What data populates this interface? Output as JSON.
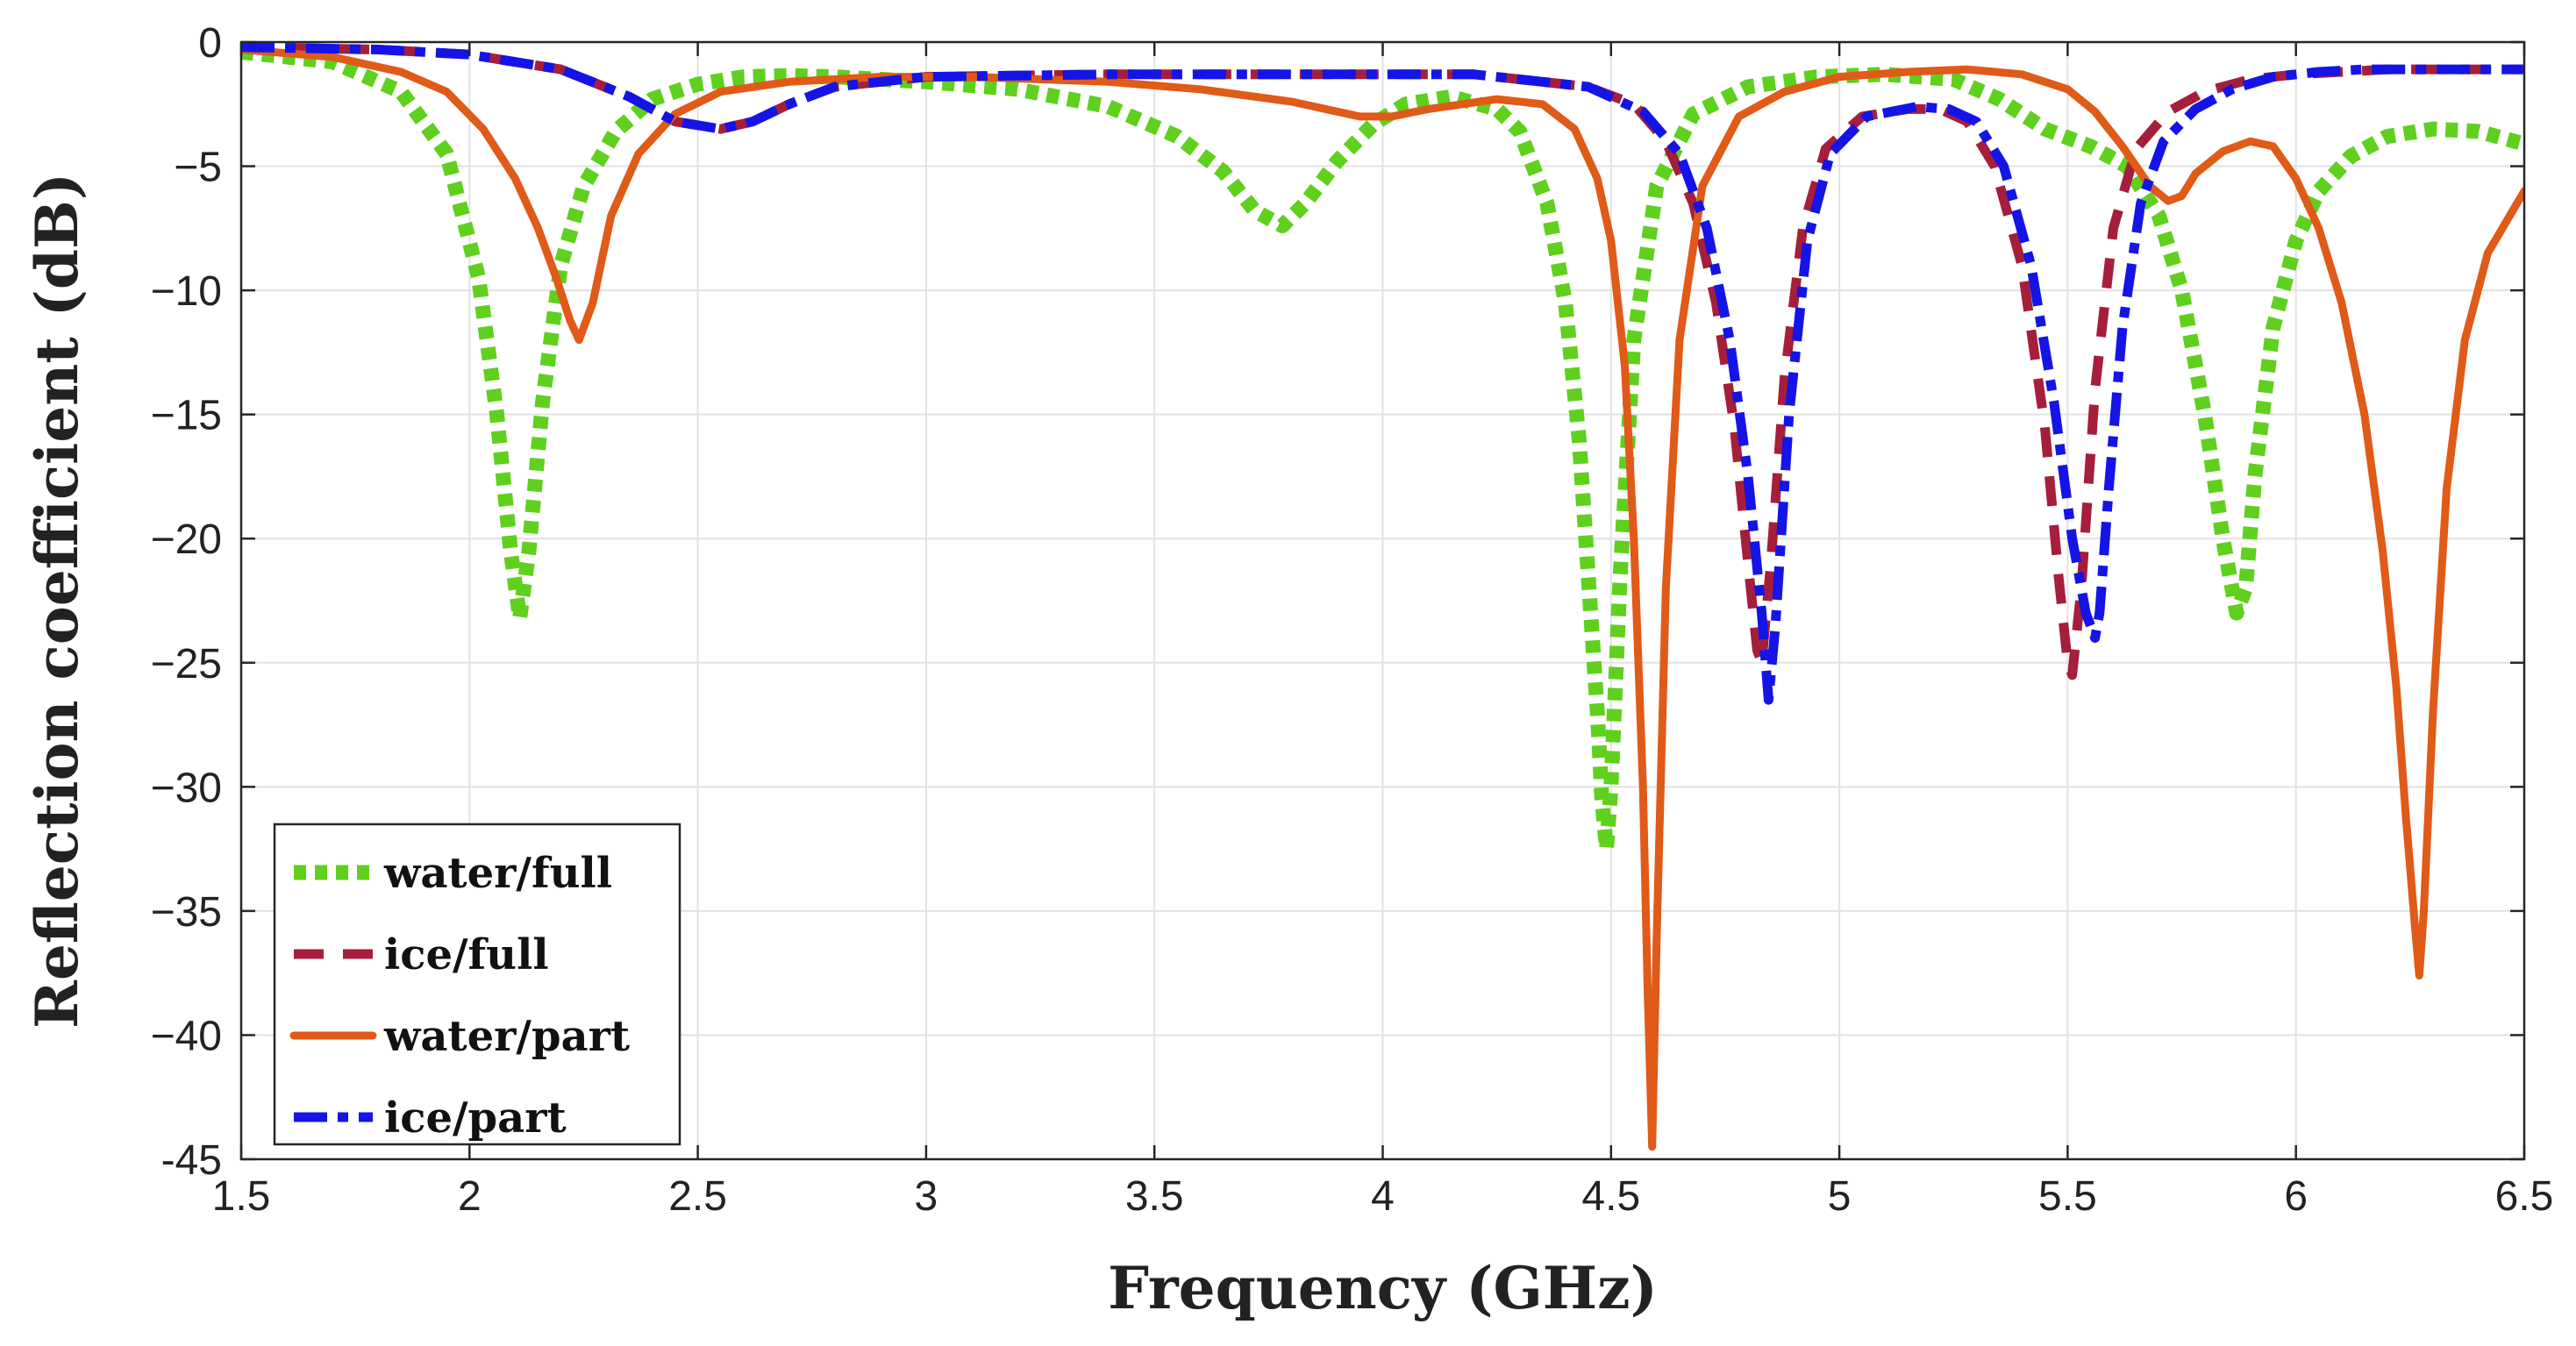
{
  "chart_data": {
    "type": "line",
    "title": "",
    "xlabel": "Frequency (GHz)",
    "ylabel": "Reflection coefficient (dB)",
    "xlim": [
      1.5,
      6.5
    ],
    "ylim": [
      -45,
      0
    ],
    "grid": true,
    "legend_position": "bottom-left",
    "xticks": [
      1.5,
      2,
      2.5,
      3,
      3.5,
      4,
      4.5,
      5,
      5.5,
      6,
      6.5
    ],
    "xtick_labels": [
      "1.5",
      "2",
      "2.5",
      "3",
      "3.5",
      "4",
      "4.5",
      "5",
      "5.5",
      "6",
      "6.5"
    ],
    "yticks": [
      0,
      -5,
      -10,
      -15,
      -20,
      -25,
      -30,
      -35,
      -40,
      -45
    ],
    "ytick_labels": [
      "0",
      "−5",
      "−10",
      "−15",
      "−20",
      "−25",
      "−30",
      "−35",
      "−40",
      "-45"
    ],
    "series": [
      {
        "name": "water/full",
        "color": "#5fd01e",
        "style": "dotted",
        "x": [
          1.5,
          1.7,
          1.85,
          1.95,
          2.02,
          2.06,
          2.09,
          2.11,
          2.13,
          2.16,
          2.2,
          2.25,
          2.32,
          2.4,
          2.5,
          2.6,
          2.7,
          2.8,
          3.0,
          3.2,
          3.4,
          3.55,
          3.65,
          3.72,
          3.78,
          3.83,
          3.9,
          3.98,
          4.05,
          4.15,
          4.25,
          4.3,
          4.36,
          4.4,
          4.43,
          4.45,
          4.47,
          4.48,
          4.49,
          4.5,
          4.52,
          4.55,
          4.6,
          4.68,
          4.8,
          4.95,
          5.1,
          5.25,
          5.35,
          5.45,
          5.55,
          5.63,
          5.7,
          5.75,
          5.8,
          5.84,
          5.87,
          5.89,
          5.91,
          5.95,
          6.0,
          6.05,
          6.12,
          6.2,
          6.3,
          6.4,
          6.5
        ],
        "y": [
          -0.4,
          -0.8,
          -2.0,
          -4.5,
          -9.5,
          -15.0,
          -20.5,
          -23.2,
          -20.5,
          -14.5,
          -9.0,
          -5.8,
          -3.6,
          -2.3,
          -1.7,
          -1.4,
          -1.35,
          -1.4,
          -1.6,
          -1.9,
          -2.6,
          -3.8,
          -5.2,
          -6.8,
          -7.4,
          -6.5,
          -4.8,
          -3.3,
          -2.5,
          -2.2,
          -2.7,
          -3.6,
          -6.5,
          -10.5,
          -16.0,
          -21.5,
          -27.0,
          -30.5,
          -32.5,
          -30.0,
          -21.5,
          -12.0,
          -5.8,
          -2.9,
          -1.8,
          -1.4,
          -1.3,
          -1.5,
          -2.3,
          -3.5,
          -4.2,
          -5.0,
          -7.0,
          -10.0,
          -15.0,
          -20.0,
          -23.0,
          -22.0,
          -17.5,
          -11.5,
          -8.0,
          -6.0,
          -4.6,
          -3.8,
          -3.5,
          -3.6,
          -4.1
        ]
      },
      {
        "name": "ice/full",
        "color": "#a51e3c",
        "style": "dashed",
        "x": [
          1.5,
          1.8,
          2.0,
          2.2,
          2.35,
          2.45,
          2.55,
          2.62,
          2.7,
          2.8,
          3.0,
          3.4,
          3.8,
          4.2,
          4.45,
          4.55,
          4.62,
          4.68,
          4.73,
          4.77,
          4.8,
          4.82,
          4.83,
          4.85,
          4.88,
          4.92,
          4.97,
          5.05,
          5.15,
          5.22,
          5.28,
          5.34,
          5.4,
          5.45,
          5.48,
          5.5,
          5.51,
          5.53,
          5.56,
          5.6,
          5.65,
          5.72,
          5.8,
          5.9,
          6.0,
          6.1,
          6.2,
          6.3,
          6.4,
          6.5
        ],
        "y": [
          -0.2,
          -0.3,
          -0.5,
          -1.1,
          -2.2,
          -3.2,
          -3.5,
          -3.2,
          -2.5,
          -1.8,
          -1.4,
          -1.3,
          -1.3,
          -1.3,
          -1.8,
          -2.5,
          -4.0,
          -6.5,
          -10.5,
          -15.5,
          -21.0,
          -24.5,
          -25.0,
          -21.0,
          -13.5,
          -7.5,
          -4.3,
          -3.0,
          -2.7,
          -2.7,
          -3.2,
          -5.0,
          -9.0,
          -15.5,
          -21.5,
          -25.0,
          -25.5,
          -22.0,
          -14.0,
          -7.5,
          -4.3,
          -2.8,
          -2.0,
          -1.5,
          -1.3,
          -1.2,
          -1.1,
          -1.1,
          -1.1,
          -1.1
        ]
      },
      {
        "name": "water/part",
        "color": "#e05a18",
        "style": "solid",
        "x": [
          1.5,
          1.7,
          1.85,
          1.95,
          2.03,
          2.1,
          2.15,
          2.19,
          2.22,
          2.24,
          2.27,
          2.31,
          2.37,
          2.45,
          2.55,
          2.7,
          2.9,
          3.1,
          3.4,
          3.6,
          3.8,
          3.95,
          4.02,
          4.1,
          4.25,
          4.35,
          4.42,
          4.47,
          4.5,
          4.53,
          4.55,
          4.57,
          4.58,
          4.59,
          4.6,
          4.62,
          4.65,
          4.7,
          4.78,
          4.88,
          5.0,
          5.15,
          5.28,
          5.4,
          5.5,
          5.56,
          5.62,
          5.68,
          5.72,
          5.75,
          5.78,
          5.84,
          5.9,
          5.95,
          6.0,
          6.05,
          6.1,
          6.15,
          6.19,
          6.22,
          6.24,
          6.26,
          6.27,
          6.28,
          6.3,
          6.33,
          6.37,
          6.42,
          6.5
        ],
        "y": [
          -0.3,
          -0.6,
          -1.2,
          -2.0,
          -3.5,
          -5.5,
          -7.5,
          -9.5,
          -11.2,
          -12.0,
          -10.5,
          -7.0,
          -4.5,
          -2.9,
          -2.0,
          -1.6,
          -1.4,
          -1.4,
          -1.6,
          -1.9,
          -2.4,
          -3.0,
          -3.0,
          -2.7,
          -2.3,
          -2.5,
          -3.5,
          -5.5,
          -8.0,
          -13.0,
          -20.0,
          -30.0,
          -38.0,
          -44.5,
          -36.0,
          -22.0,
          -12.0,
          -5.8,
          -3.0,
          -2.0,
          -1.4,
          -1.2,
          -1.1,
          -1.3,
          -1.9,
          -2.8,
          -4.2,
          -5.8,
          -6.4,
          -6.2,
          -5.3,
          -4.4,
          -4.0,
          -4.2,
          -5.5,
          -7.5,
          -10.5,
          -15.0,
          -20.5,
          -26.0,
          -31.0,
          -35.5,
          -37.6,
          -35.0,
          -27.0,
          -18.0,
          -12.0,
          -8.5,
          -6.0
        ]
      },
      {
        "name": "ice/part",
        "color": "#1414e6",
        "style": "dashdot",
        "x": [
          1.5,
          1.8,
          2.0,
          2.2,
          2.35,
          2.45,
          2.55,
          2.62,
          2.7,
          2.8,
          3.0,
          3.4,
          3.8,
          4.2,
          4.45,
          4.57,
          4.65,
          4.71,
          4.76,
          4.8,
          4.83,
          4.845,
          4.86,
          4.89,
          4.93,
          4.98,
          5.06,
          5.17,
          5.24,
          5.3,
          5.36,
          5.42,
          5.47,
          5.51,
          5.54,
          5.56,
          5.57,
          5.59,
          5.62,
          5.66,
          5.71,
          5.78,
          5.86,
          5.95,
          6.05,
          6.15,
          6.25,
          6.35,
          6.45,
          6.5
        ],
        "y": [
          -0.2,
          -0.3,
          -0.5,
          -1.1,
          -2.2,
          -3.2,
          -3.5,
          -3.2,
          -2.5,
          -1.8,
          -1.4,
          -1.3,
          -1.3,
          -1.3,
          -1.8,
          -2.8,
          -4.5,
          -7.5,
          -12.0,
          -17.5,
          -23.0,
          -26.5,
          -23.5,
          -15.0,
          -8.0,
          -4.5,
          -3.0,
          -2.6,
          -2.7,
          -3.2,
          -5.0,
          -9.0,
          -14.5,
          -20.0,
          -23.0,
          -24.0,
          -23.0,
          -18.0,
          -11.5,
          -6.5,
          -4.0,
          -2.7,
          -1.9,
          -1.4,
          -1.2,
          -1.1,
          -1.1,
          -1.1,
          -1.1,
          -1.1
        ]
      }
    ]
  }
}
